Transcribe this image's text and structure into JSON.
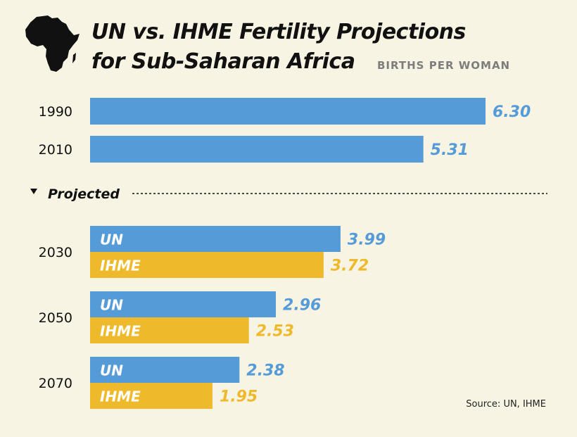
{
  "title_line1": "UN vs. IHME Fertility Projections",
  "title_line2": "for Sub-Saharan Africa",
  "subtitle": "BIRTHS PER WOMAN",
  "source": "Source: UN, IHME",
  "icon": "africa-map-icon",
  "colors": {
    "background": "#f8f4e3",
    "un": "#559bd8",
    "ihme": "#eeb92a",
    "text": "#111111"
  },
  "chart_data": {
    "type": "bar",
    "orientation": "horizontal",
    "title": "UN vs. IHME Fertility Projections for Sub-Saharan Africa",
    "subtitle": "BIRTHS PER WOMAN",
    "section_label": "Projected",
    "historical": [
      {
        "year": "1990",
        "value": 6.3,
        "label": "6.30"
      },
      {
        "year": "2010",
        "value": 5.31,
        "label": "5.31"
      }
    ],
    "projected": [
      {
        "year": "2030",
        "bars": [
          {
            "series": "UN",
            "value": 3.99,
            "label": "3.99"
          },
          {
            "series": "IHME",
            "value": 3.72,
            "label": "3.72"
          }
        ]
      },
      {
        "year": "2050",
        "bars": [
          {
            "series": "UN",
            "value": 2.96,
            "label": "2.96"
          },
          {
            "series": "IHME",
            "value": 2.53,
            "label": "2.53"
          }
        ]
      },
      {
        "year": "2070",
        "bars": [
          {
            "series": "UN",
            "value": 2.38,
            "label": "2.38"
          },
          {
            "series": "IHME",
            "value": 1.95,
            "label": "1.95"
          }
        ]
      }
    ],
    "series": [
      {
        "name": "UN",
        "color": "#559bd8"
      },
      {
        "name": "IHME",
        "color": "#eeb92a"
      }
    ],
    "xlim": [
      0,
      6.3
    ]
  }
}
